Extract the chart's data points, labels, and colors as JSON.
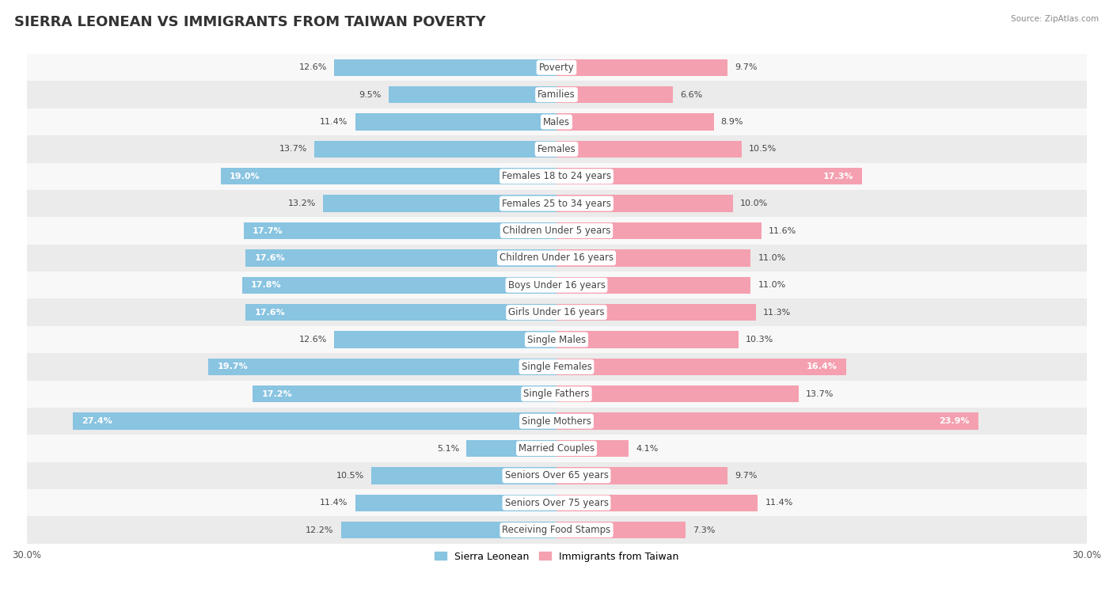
{
  "title": "SIERRA LEONEAN VS IMMIGRANTS FROM TAIWAN POVERTY",
  "source": "Source: ZipAtlas.com",
  "categories": [
    "Poverty",
    "Families",
    "Males",
    "Females",
    "Females 18 to 24 years",
    "Females 25 to 34 years",
    "Children Under 5 years",
    "Children Under 16 years",
    "Boys Under 16 years",
    "Girls Under 16 years",
    "Single Males",
    "Single Females",
    "Single Fathers",
    "Single Mothers",
    "Married Couples",
    "Seniors Over 65 years",
    "Seniors Over 75 years",
    "Receiving Food Stamps"
  ],
  "sierra_leone": [
    12.6,
    9.5,
    11.4,
    13.7,
    19.0,
    13.2,
    17.7,
    17.6,
    17.8,
    17.6,
    12.6,
    19.7,
    17.2,
    27.4,
    5.1,
    10.5,
    11.4,
    12.2
  ],
  "taiwan": [
    9.7,
    6.6,
    8.9,
    10.5,
    17.3,
    10.0,
    11.6,
    11.0,
    11.0,
    11.3,
    10.3,
    16.4,
    13.7,
    23.9,
    4.1,
    9.7,
    11.4,
    7.3
  ],
  "max_val": 30.0,
  "blue_color": "#89C4E1",
  "pink_color": "#F4A0B0",
  "blue_label": "Sierra Leonean",
  "pink_label": "Immigrants from Taiwan",
  "row_bg_light": "#EBEBEB",
  "row_bg_white": "#F8F8F8",
  "bar_height": 0.62,
  "title_fontsize": 13,
  "label_fontsize": 8.5,
  "value_fontsize": 8,
  "axis_label_fontsize": 8.5
}
